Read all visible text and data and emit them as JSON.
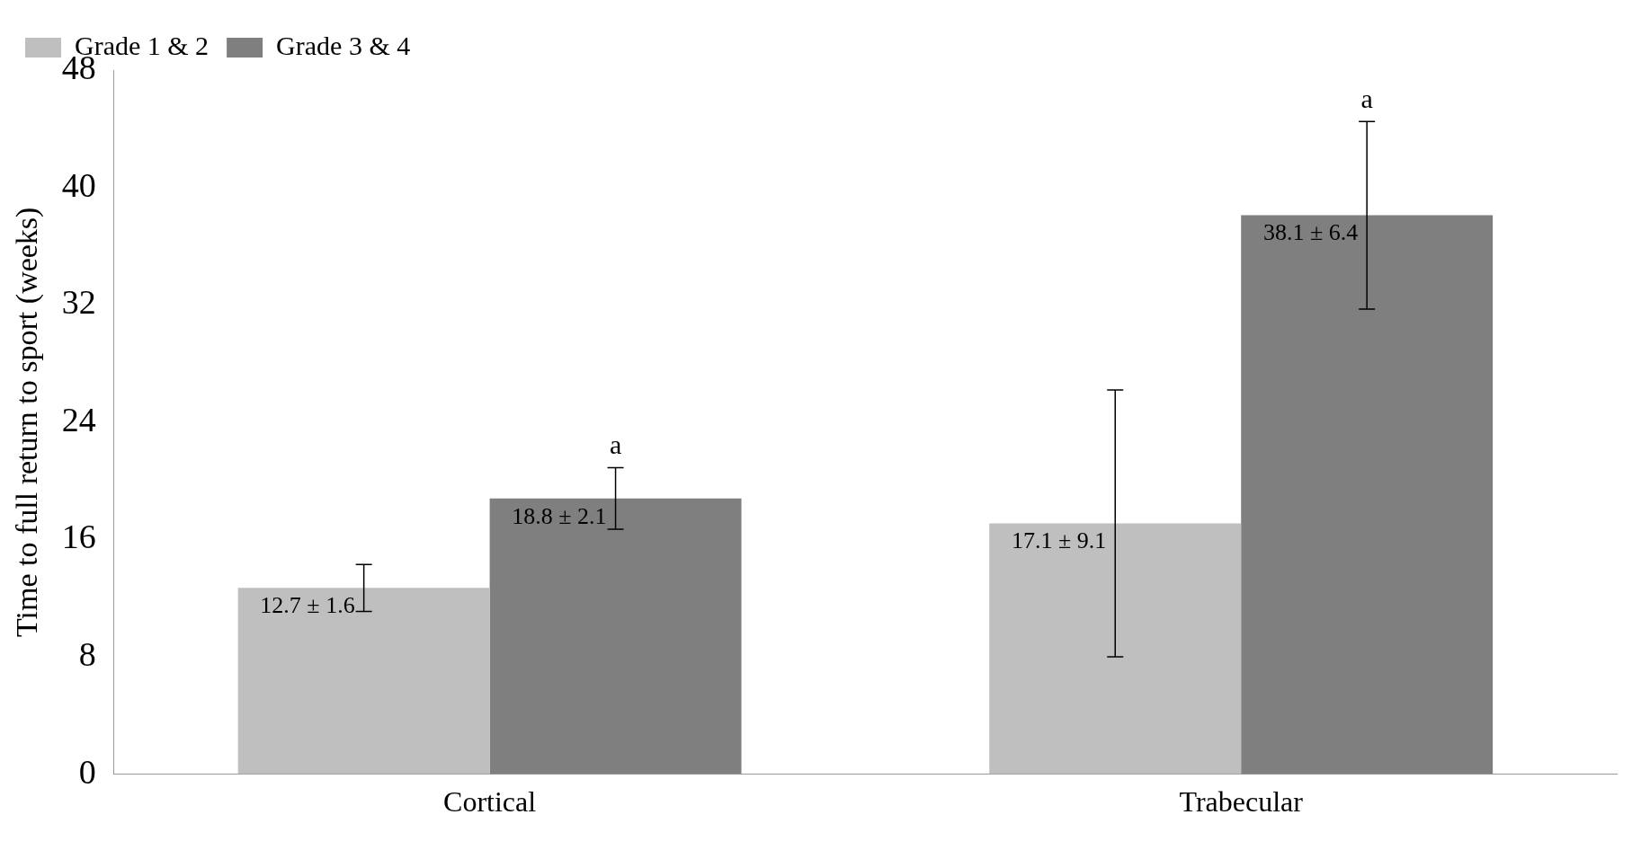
{
  "chart_data": {
    "type": "bar",
    "ylabel": "Time to full return to sport (weeks)",
    "categories": [
      "Cortical",
      "Trabecular"
    ],
    "series": [
      {
        "name": "Grade 1 & 2",
        "color": "#bfbfbf",
        "values": [
          12.7,
          17.1
        ],
        "errors": [
          1.6,
          9.1
        ],
        "value_labels": [
          "12.7 ± 1.6",
          "17.1 ± 9.1"
        ]
      },
      {
        "name": "Grade 3 & 4",
        "color": "#7f7f7f",
        "values": [
          18.8,
          38.1
        ],
        "errors": [
          2.1,
          6.4
        ],
        "value_labels": [
          "18.8 ± 2.1",
          "38.1 ± 6.4"
        ]
      }
    ],
    "annotations": [
      "a",
      "a"
    ],
    "ylim": [
      0,
      48
    ],
    "yticks": [
      0,
      8,
      16,
      24,
      32,
      40,
      48
    ],
    "grid": false,
    "legend": "top left"
  }
}
